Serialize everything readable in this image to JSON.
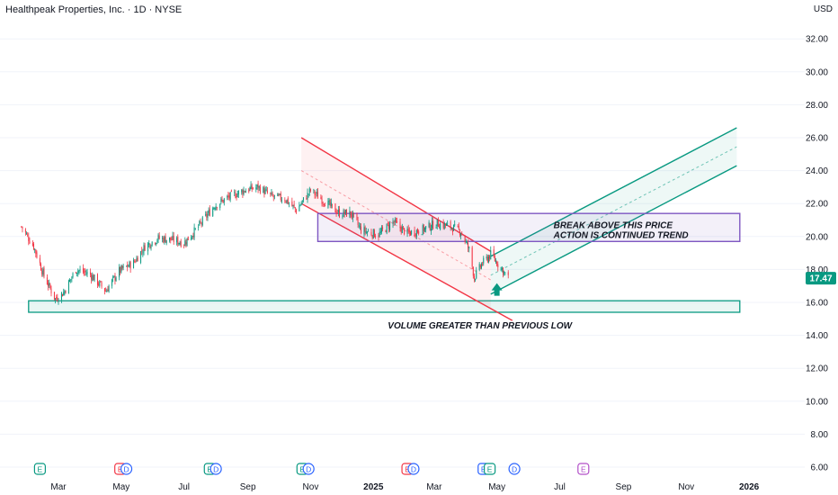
{
  "header": {
    "symbol_title": "Healthpeak Properties, Inc. · 1D · NYSE",
    "currency": "USD"
  },
  "price_tag": {
    "value": "17.47",
    "color": "#089981"
  },
  "chart_data": {
    "type": "candlestick",
    "title": "Healthpeak Properties, Inc. · 1D · NYSE",
    "y_axis": {
      "unit": "USD",
      "range": [
        5.2,
        33.4
      ],
      "ticks": [
        "6.00",
        "8.00",
        "10.00",
        "12.00",
        "14.00",
        "16.00",
        "18.00",
        "20.00",
        "22.00",
        "24.00",
        "26.00",
        "28.00",
        "30.00",
        "32.00"
      ]
    },
    "x_axis": {
      "ticks": [
        "Mar",
        "May",
        "Jul",
        "Sep",
        "Nov",
        "2025",
        "Mar",
        "May",
        "Jul",
        "Sep",
        "Nov",
        "2026"
      ]
    },
    "price_path": [
      [
        "2024-01-25",
        20.6
      ],
      [
        "2024-02-06",
        19.4
      ],
      [
        "2024-02-16",
        17.6
      ],
      [
        "2024-02-27",
        16.2
      ],
      [
        "2024-03-06",
        16.6
      ],
      [
        "2024-03-18",
        18.0
      ],
      [
        "2024-04-01",
        17.7
      ],
      [
        "2024-04-16",
        16.7
      ],
      [
        "2024-04-29",
        17.9
      ],
      [
        "2024-05-13",
        18.4
      ],
      [
        "2024-05-24",
        19.4
      ],
      [
        "2024-06-06",
        19.9
      ],
      [
        "2024-06-20",
        19.8
      ],
      [
        "2024-07-01",
        19.6
      ],
      [
        "2024-07-15",
        20.6
      ],
      [
        "2024-07-31",
        21.9
      ],
      [
        "2024-08-14",
        22.4
      ],
      [
        "2024-08-28",
        22.8
      ],
      [
        "2024-09-11",
        23.0
      ],
      [
        "2024-09-25",
        22.4
      ],
      [
        "2024-10-07",
        22.3
      ],
      [
        "2024-10-18",
        21.6
      ],
      [
        "2024-11-01",
        22.8
      ],
      [
        "2024-11-15",
        22.1
      ],
      [
        "2024-11-29",
        21.4
      ],
      [
        "2024-12-10",
        21.4
      ],
      [
        "2024-12-20",
        20.4
      ],
      [
        "2025-01-06",
        20.1
      ],
      [
        "2025-01-20",
        20.9
      ],
      [
        "2025-02-03",
        20.2
      ],
      [
        "2025-02-17",
        20.4
      ],
      [
        "2025-03-03",
        20.8
      ],
      [
        "2025-03-17",
        20.6
      ],
      [
        "2025-03-27",
        20.3
      ],
      [
        "2025-04-04",
        19.2
      ],
      [
        "2025-04-09",
        17.5
      ],
      [
        "2025-04-16",
        18.3
      ],
      [
        "2025-04-25",
        18.9
      ],
      [
        "2025-05-05",
        18.1
      ],
      [
        "2025-05-12",
        17.47
      ]
    ],
    "last_price": 17.47,
    "drawings": {
      "descending_channel": {
        "upper": [
          [
            "2024-10-23",
            26.0
          ],
          [
            "2025-04-25",
            19.1
          ]
        ],
        "lower": [
          [
            "2024-10-23",
            22.0
          ],
          [
            "2025-05-16",
            14.9
          ]
        ],
        "color": "#f23645"
      },
      "ascending_channel": {
        "upper": [
          [
            "2025-04-25",
            18.8
          ],
          [
            "2025-12-20",
            26.6
          ]
        ],
        "lower": [
          [
            "2025-04-25",
            16.5
          ],
          [
            "2025-12-20",
            24.3
          ]
        ],
        "color": "#089981"
      },
      "resistance_box": {
        "y_range": [
          19.7,
          21.4
        ],
        "x_range": [
          "2024-11-08",
          "2025-12-23"
        ],
        "color": "#7e57c2"
      },
      "support_box": {
        "y_range": [
          15.4,
          16.1
        ],
        "x_range": [
          "2024-02-01",
          "2025-12-23"
        ],
        "color": "#089981"
      },
      "arrow_up": {
        "date": "2025-05-01",
        "price": 16.4,
        "color": "#089981"
      }
    },
    "annotations": [
      {
        "text": "BREAK ABOVE THIS PRICE",
        "date": "2025-06-25",
        "price": 20.7
      },
      {
        "text": "ACTION IS CONTINUED TREND",
        "date": "2025-06-25",
        "price": 20.1
      },
      {
        "text": "VOLUME GREATER THAN PREVIOUS LOW",
        "date": "2025-01-15",
        "price": 14.6
      }
    ],
    "events": [
      {
        "type": "E",
        "color": "#089981",
        "date": "2024-02-12"
      },
      {
        "type": "E",
        "color": "#f23645",
        "date": "2024-04-30"
      },
      {
        "type": "D",
        "color": "#2962ff",
        "date": "2024-05-06"
      },
      {
        "type": "E",
        "color": "#089981",
        "date": "2024-07-26"
      },
      {
        "type": "D",
        "color": "#2962ff",
        "date": "2024-08-01"
      },
      {
        "type": "E",
        "color": "#089981",
        "date": "2024-10-24"
      },
      {
        "type": "D",
        "color": "#2962ff",
        "date": "2024-10-30"
      },
      {
        "type": "E",
        "color": "#f23645",
        "date": "2025-02-03"
      },
      {
        "type": "D",
        "color": "#2962ff",
        "date": "2025-02-09"
      },
      {
        "type": "E",
        "color": "#2962ff",
        "date": "2025-04-18"
      },
      {
        "type": "E",
        "color": "#089981",
        "date": "2025-04-24"
      },
      {
        "type": "D",
        "color": "#2962ff",
        "date": "2025-05-18"
      },
      {
        "type": "E",
        "color": "#b24fc8",
        "date": "2025-07-24"
      }
    ]
  }
}
